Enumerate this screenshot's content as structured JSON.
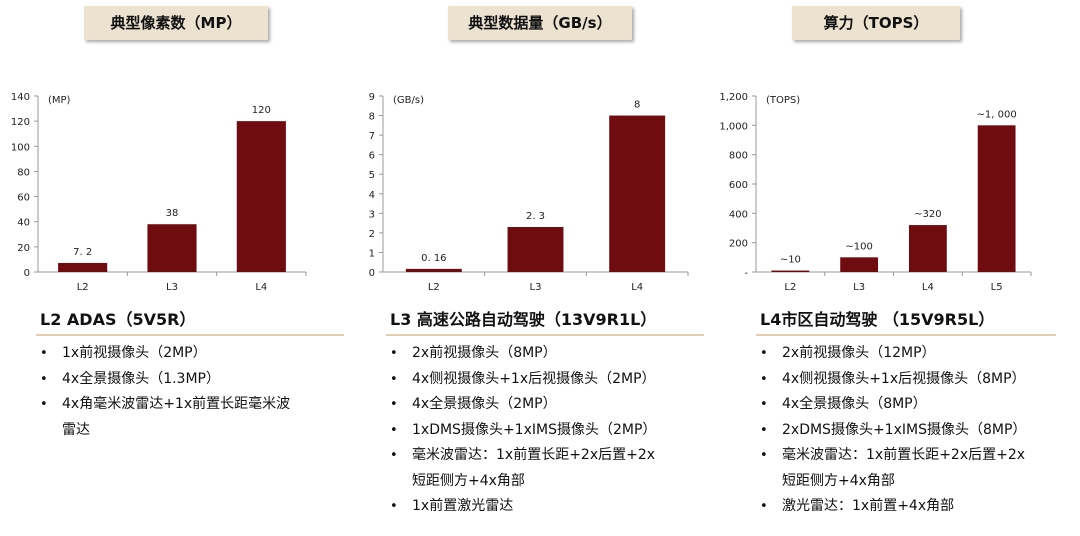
{
  "colors": {
    "bar": "#6e0c10",
    "axis": "#999999",
    "header_bg": "#ece2d0",
    "rule": "#e2cfb0"
  },
  "panels": [
    {
      "header": "典型像素数（MP）",
      "subtitle": "L2 ADAS（5V5R）",
      "items": [
        "1x前视摄像头（2MP）",
        "4x全景摄像头（1.3MP）",
        "4x角毫米波雷达+1x前置长距毫米波",
        "雷达"
      ]
    },
    {
      "header": "典型数据量（GB/s）",
      "subtitle": "L3 高速公路自动驾驶（13V9R1L）",
      "items": [
        "2x前视摄像头（8MP）",
        "4x侧视摄像头+1x后视摄像头（2MP）",
        "4x全景摄像头（2MP）",
        "1xDMS摄像头+1xIMS摄像头（2MP）",
        "毫米波雷达：1x前置长距+2x后置+2x",
        "短距侧方+4x角部",
        "1x前置激光雷达"
      ]
    },
    {
      "header": "算力（TOPS）",
      "subtitle": "L4市区自动驾驶 （15V9R5L）",
      "items": [
        "2x前视摄像头（12MP）",
        "4x侧视摄像头+1x后视摄像头（8MP）",
        "4x全景摄像头（8MP）",
        "2xDMS摄像头+1xIMS摄像头（8MP）",
        "毫米波雷达：1x前置长距+2x后置+2x",
        "短距侧方+4x角部",
        "激光雷达：1x前置+4x角部"
      ]
    }
  ],
  "chart_data": [
    {
      "type": "bar",
      "unit_label": "(MP)",
      "categories": [
        "L2",
        "L3",
        "L4"
      ],
      "values": [
        7.2,
        38,
        120
      ],
      "value_labels": [
        "7. 2",
        "38",
        "120"
      ],
      "ylim": [
        0,
        140
      ],
      "yticks": [
        0,
        20,
        40,
        60,
        80,
        100,
        120,
        140
      ],
      "ytick_labels": [
        "0",
        "20",
        "40",
        "60",
        "80",
        "100",
        "120",
        "140"
      ]
    },
    {
      "type": "bar",
      "unit_label": "(GB/s)",
      "categories": [
        "L2",
        "L3",
        "L4"
      ],
      "values": [
        0.16,
        2.3,
        8
      ],
      "value_labels": [
        "0. 16",
        "2. 3",
        "8"
      ],
      "ylim": [
        0,
        9
      ],
      "yticks": [
        0,
        1,
        2,
        3,
        4,
        5,
        6,
        7,
        8,
        9
      ],
      "ytick_labels": [
        "0",
        "1",
        "2",
        "3",
        "4",
        "5",
        "6",
        "7",
        "8",
        "9"
      ]
    },
    {
      "type": "bar",
      "unit_label": "(TOPS)",
      "categories": [
        "L2",
        "L3",
        "L4",
        "L5"
      ],
      "values": [
        10,
        100,
        320,
        1000
      ],
      "value_labels": [
        "~10",
        "~100",
        "~320",
        "~1, 000"
      ],
      "ylim": [
        0,
        1200
      ],
      "yticks": [
        0,
        200,
        400,
        600,
        800,
        1000,
        1200
      ],
      "ytick_labels": [
        "-",
        "200",
        "400",
        "600",
        "800",
        "1,000",
        "1,200"
      ]
    }
  ]
}
